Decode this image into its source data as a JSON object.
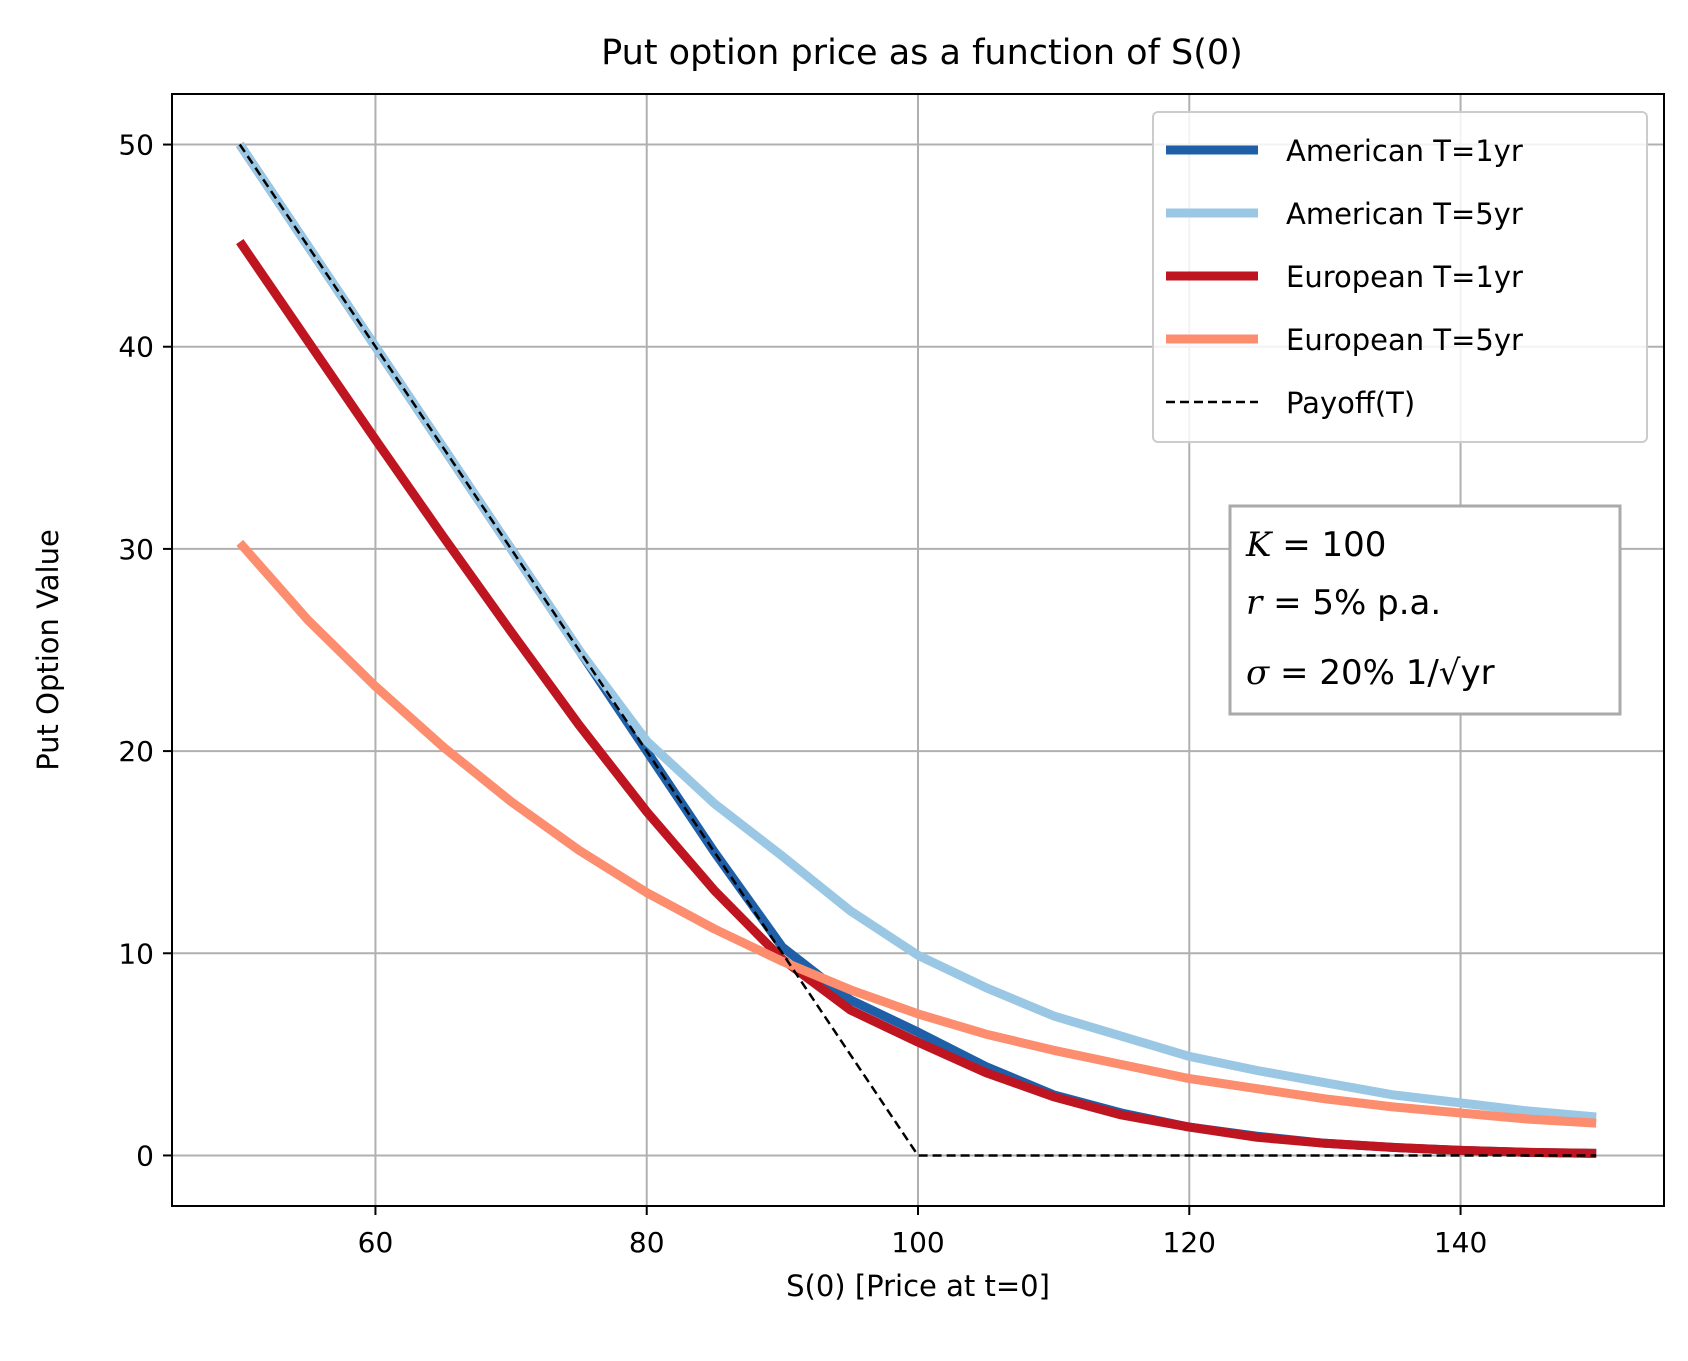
{
  "chart_data": {
    "type": "line",
    "title": "Put option price as a function of S(0)",
    "xlabel": "S(0) [Price at t=0]",
    "ylabel": "Put Option Value",
    "xlim": [
      45,
      155
    ],
    "ylim": [
      -2.5,
      52.5
    ],
    "xticks": [
      60,
      80,
      100,
      120,
      140
    ],
    "yticks": [
      0,
      10,
      20,
      30,
      40,
      50
    ],
    "grid": true,
    "legend_position": "top-right",
    "x": [
      50,
      55,
      60,
      65,
      70,
      75,
      80,
      85,
      90,
      95,
      100,
      105,
      110,
      115,
      120,
      125,
      130,
      135,
      140,
      145,
      150
    ],
    "series": [
      {
        "name": "American T=1yr",
        "color": "#1f5fa8",
        "style": "solid",
        "values": [
          50,
          45,
          40,
          35,
          30,
          25,
          20,
          15,
          10.3,
          7.7,
          6.1,
          4.4,
          3.0,
          2.1,
          1.4,
          0.95,
          0.6,
          0.4,
          0.25,
          0.15,
          0.1
        ]
      },
      {
        "name": "American T=5yr",
        "color": "#9ac7e3",
        "style": "solid",
        "values": [
          50,
          45,
          40,
          35,
          30,
          25,
          20.5,
          17.4,
          14.8,
          12.1,
          9.9,
          8.3,
          6.9,
          5.9,
          4.9,
          4.2,
          3.6,
          3.0,
          2.6,
          2.2,
          1.9
        ]
      },
      {
        "name": "European T=1yr",
        "color": "#bf1520",
        "style": "solid",
        "values": [
          45.2,
          40.3,
          35.4,
          30.6,
          25.9,
          21.3,
          17.0,
          13.1,
          9.7,
          7.2,
          5.6,
          4.1,
          2.9,
          2.0,
          1.4,
          0.9,
          0.6,
          0.4,
          0.25,
          0.15,
          0.1
        ]
      },
      {
        "name": "European T=5yr",
        "color": "#fc8d6e",
        "style": "solid",
        "values": [
          30.3,
          26.5,
          23.2,
          20.2,
          17.5,
          15.1,
          13.0,
          11.2,
          9.6,
          8.2,
          7.0,
          6.0,
          5.2,
          4.5,
          3.8,
          3.3,
          2.8,
          2.4,
          2.1,
          1.8,
          1.6
        ]
      },
      {
        "name": "Payoff(T)",
        "color": "#000000",
        "style": "dashed",
        "values": [
          50,
          45,
          40,
          35,
          30,
          25,
          20,
          15,
          10,
          5,
          0,
          0,
          0,
          0,
          0,
          0,
          0,
          0,
          0,
          0,
          0
        ]
      }
    ],
    "annotation": {
      "K_symbol": "K",
      "K_value": " = 100",
      "r_symbol": "r",
      "r_value": " = 5% p.a.",
      "sigma_symbol": "σ",
      "sigma_value": " = 20% 1/√yr"
    }
  }
}
